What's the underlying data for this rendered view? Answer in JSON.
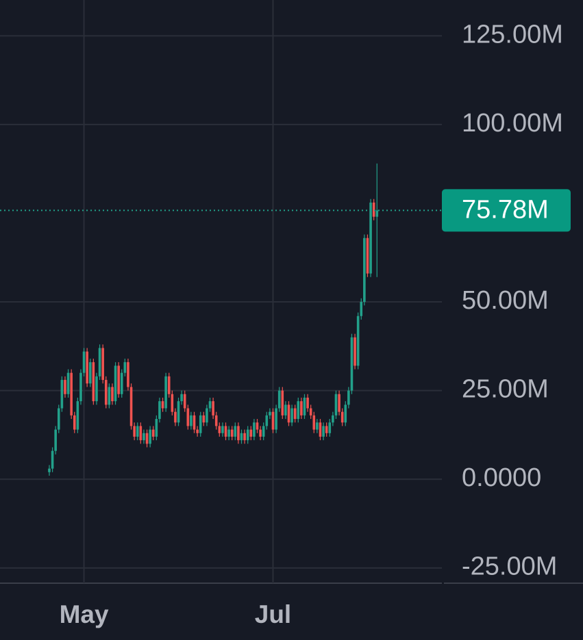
{
  "chart_data": {
    "type": "candlestick",
    "open": [
      2,
      3,
      8,
      14,
      20,
      28,
      24,
      30,
      18,
      14,
      22,
      30,
      36,
      27,
      33,
      22,
      29,
      37,
      28,
      21,
      26,
      22,
      32,
      24,
      30,
      33,
      26,
      15,
      12,
      15,
      11,
      13,
      10,
      14,
      12,
      17,
      22,
      20,
      29,
      24,
      19,
      16,
      22,
      24,
      20,
      15,
      18,
      14,
      13,
      18,
      16,
      20,
      22,
      18,
      15,
      13,
      15,
      12,
      14,
      12,
      15,
      11,
      13,
      11,
      14,
      12,
      16,
      14,
      12,
      15,
      18,
      19,
      14,
      20,
      25,
      18,
      21,
      16,
      20,
      17,
      22,
      18,
      23,
      20,
      18,
      14,
      16,
      12,
      15,
      13,
      16,
      18,
      24,
      19,
      16,
      21,
      25,
      40,
      32,
      46,
      50,
      68,
      58,
      78,
      74
    ],
    "high": [
      4,
      9,
      15,
      21,
      29,
      29,
      31,
      31,
      19,
      23,
      31,
      37,
      37,
      34,
      34,
      30,
      38,
      38,
      29,
      27,
      27,
      33,
      33,
      31,
      34,
      34,
      27,
      16,
      16,
      16,
      14,
      14,
      15,
      15,
      18,
      23,
      23,
      30,
      30,
      25,
      20,
      23,
      25,
      25,
      21,
      19,
      19,
      15,
      19,
      19,
      21,
      23,
      23,
      19,
      16,
      16,
      16,
      15,
      15,
      16,
      16,
      14,
      14,
      15,
      15,
      17,
      17,
      15,
      16,
      19,
      20,
      20,
      21,
      26,
      26,
      22,
      22,
      21,
      21,
      23,
      23,
      24,
      24,
      21,
      19,
      17,
      17,
      16,
      16,
      17,
      19,
      25,
      25,
      20,
      22,
      26,
      41,
      41,
      47,
      51,
      69,
      69,
      79,
      79,
      89
    ],
    "low": [
      1,
      2,
      7,
      13,
      19,
      23,
      23,
      17,
      13,
      13,
      21,
      29,
      26,
      26,
      21,
      21,
      28,
      27,
      20,
      20,
      21,
      21,
      23,
      23,
      29,
      25,
      14,
      11,
      11,
      10,
      10,
      9,
      9,
      11,
      11,
      16,
      19,
      19,
      23,
      18,
      15,
      15,
      21,
      19,
      14,
      14,
      13,
      12,
      12,
      15,
      15,
      19,
      17,
      14,
      12,
      12,
      11,
      11,
      11,
      11,
      10,
      10,
      10,
      10,
      11,
      11,
      13,
      11,
      11,
      14,
      17,
      13,
      13,
      19,
      17,
      17,
      15,
      15,
      16,
      16,
      17,
      17,
      19,
      17,
      13,
      13,
      11,
      11,
      12,
      12,
      15,
      17,
      18,
      15,
      15,
      20,
      24,
      31,
      31,
      45,
      49,
      57,
      57,
      73,
      57
    ],
    "close": [
      3,
      8,
      14,
      20,
      28,
      24,
      30,
      18,
      14,
      22,
      30,
      36,
      27,
      33,
      22,
      29,
      37,
      28,
      21,
      26,
      22,
      32,
      24,
      30,
      33,
      26,
      15,
      12,
      15,
      11,
      13,
      10,
      14,
      12,
      17,
      22,
      20,
      29,
      24,
      19,
      16,
      22,
      24,
      20,
      15,
      18,
      14,
      13,
      18,
      16,
      20,
      22,
      18,
      15,
      13,
      15,
      12,
      14,
      12,
      15,
      11,
      13,
      11,
      14,
      12,
      16,
      14,
      12,
      15,
      18,
      19,
      14,
      20,
      25,
      18,
      21,
      16,
      20,
      17,
      22,
      18,
      23,
      20,
      18,
      14,
      16,
      12,
      15,
      13,
      16,
      18,
      24,
      19,
      16,
      21,
      25,
      40,
      32,
      46,
      50,
      68,
      58,
      78,
      74,
      75.78
    ],
    "up_color": "#22a08a",
    "down_color": "#ef5350",
    "xlim": [
      -15.65,
      124.6
    ],
    "xticks": [
      {
        "value": 11,
        "label": "May"
      },
      {
        "value": 71,
        "label": "Jul"
      }
    ],
    "ylim": [
      -29.3,
      135.1
    ],
    "yticks": [
      {
        "value": -25,
        "label": "-25.00M"
      },
      {
        "value": 0,
        "label": "0.0000"
      },
      {
        "value": 25,
        "label": "25.00M"
      },
      {
        "value": 50,
        "label": "50.00M"
      },
      {
        "value": 100,
        "label": "100.00M"
      },
      {
        "value": 125,
        "label": "125.00M"
      }
    ],
    "last_price": {
      "value": 75.78,
      "label": "75.78M"
    },
    "grid": true
  }
}
